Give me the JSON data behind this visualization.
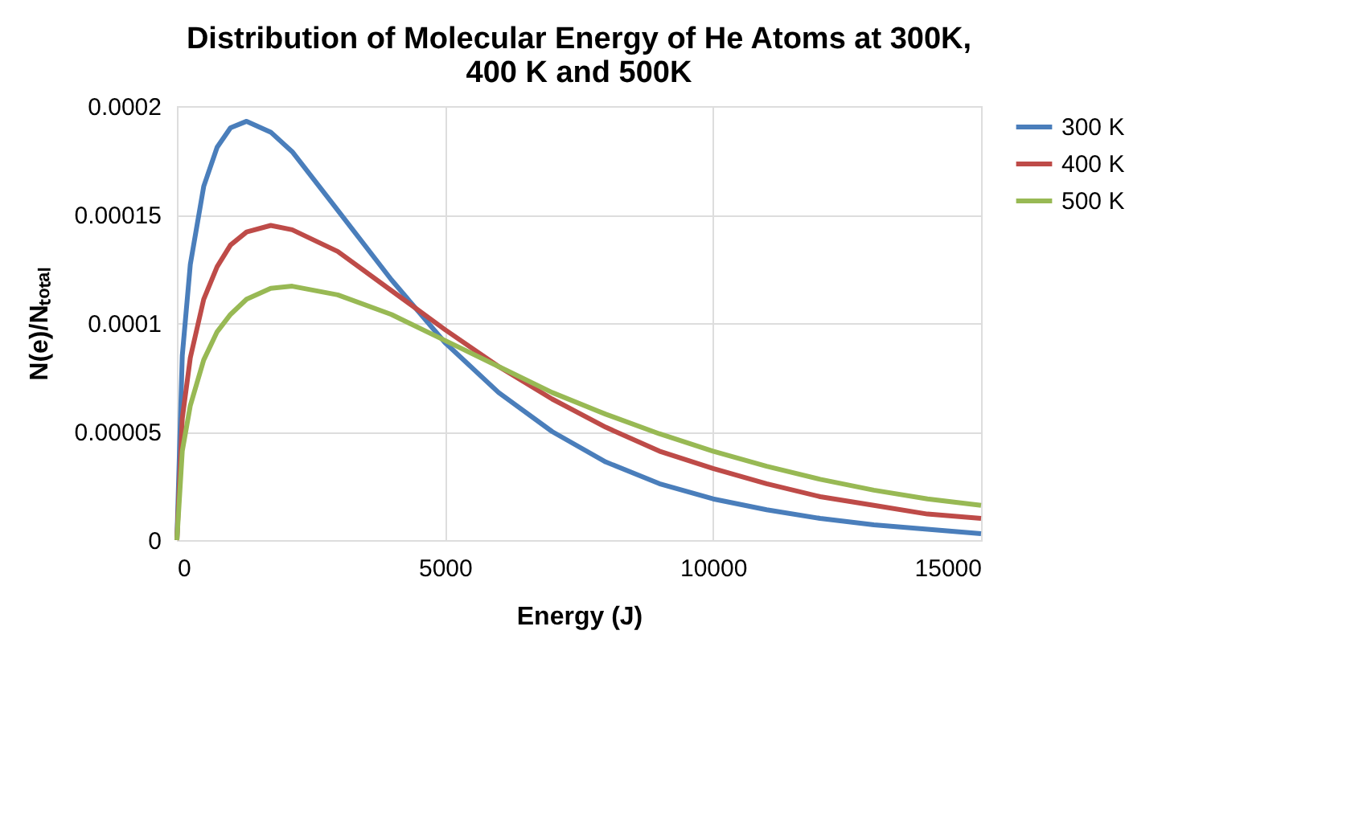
{
  "chart_data": {
    "type": "line",
    "title": "Distribution of Molecular Energy of He Atoms at 300K, 400 K and 500K",
    "xlabel": "Energy  (J)",
    "ylabel": "N(e)/Nₜₒₜₐₗ",
    "x": [
      0,
      100,
      250,
      500,
      750,
      1000,
      1300,
      1750,
      2150,
      3000,
      4000,
      5000,
      6000,
      7000,
      8000,
      9000,
      10000,
      11000,
      12000,
      13000,
      14000,
      15000
    ],
    "series": [
      {
        "name": "300 K",
        "color": "#4a7ebb",
        "values": [
          0,
          8.5e-05,
          0.000127,
          0.000163,
          0.000181,
          0.00019,
          0.000193,
          0.000188,
          0.000179,
          0.000152,
          0.00012,
          9.1e-05,
          6.8e-05,
          5e-05,
          3.6e-05,
          2.6e-05,
          1.9e-05,
          1.4e-05,
          1e-05,
          7e-06,
          5e-06,
          3e-06
        ]
      },
      {
        "name": "400 K",
        "color": "#be4b48",
        "values": [
          0,
          5.6e-05,
          8.4e-05,
          0.000111,
          0.000126,
          0.000136,
          0.000142,
          0.000145,
          0.000143,
          0.000133,
          0.000115,
          9.7e-05,
          8e-05,
          6.5e-05,
          5.2e-05,
          4.1e-05,
          3.3e-05,
          2.6e-05,
          2e-05,
          1.6e-05,
          1.2e-05,
          1e-05
        ]
      },
      {
        "name": "500 K",
        "color": "#98b954",
        "values": [
          0,
          4.1e-05,
          6.2e-05,
          8.3e-05,
          9.6e-05,
          0.000104,
          0.000111,
          0.000116,
          0.000117,
          0.000113,
          0.000104,
          9.2e-05,
          8e-05,
          6.8e-05,
          5.8e-05,
          4.9e-05,
          4.1e-05,
          3.4e-05,
          2.8e-05,
          2.3e-05,
          1.9e-05,
          1.6e-05
        ]
      }
    ],
    "xlim": [
      0,
      15000
    ],
    "xticks": [
      0,
      5000,
      10000,
      15000
    ],
    "ylim": [
      0,
      0.0002
    ],
    "yticks": [
      0,
      {
        "value": 5e-05,
        "label": "0.00005"
      },
      0.0001,
      0.00015,
      0.0002
    ],
    "grid": true,
    "legend": "right",
    "marker": "none",
    "line_style": "solid"
  }
}
